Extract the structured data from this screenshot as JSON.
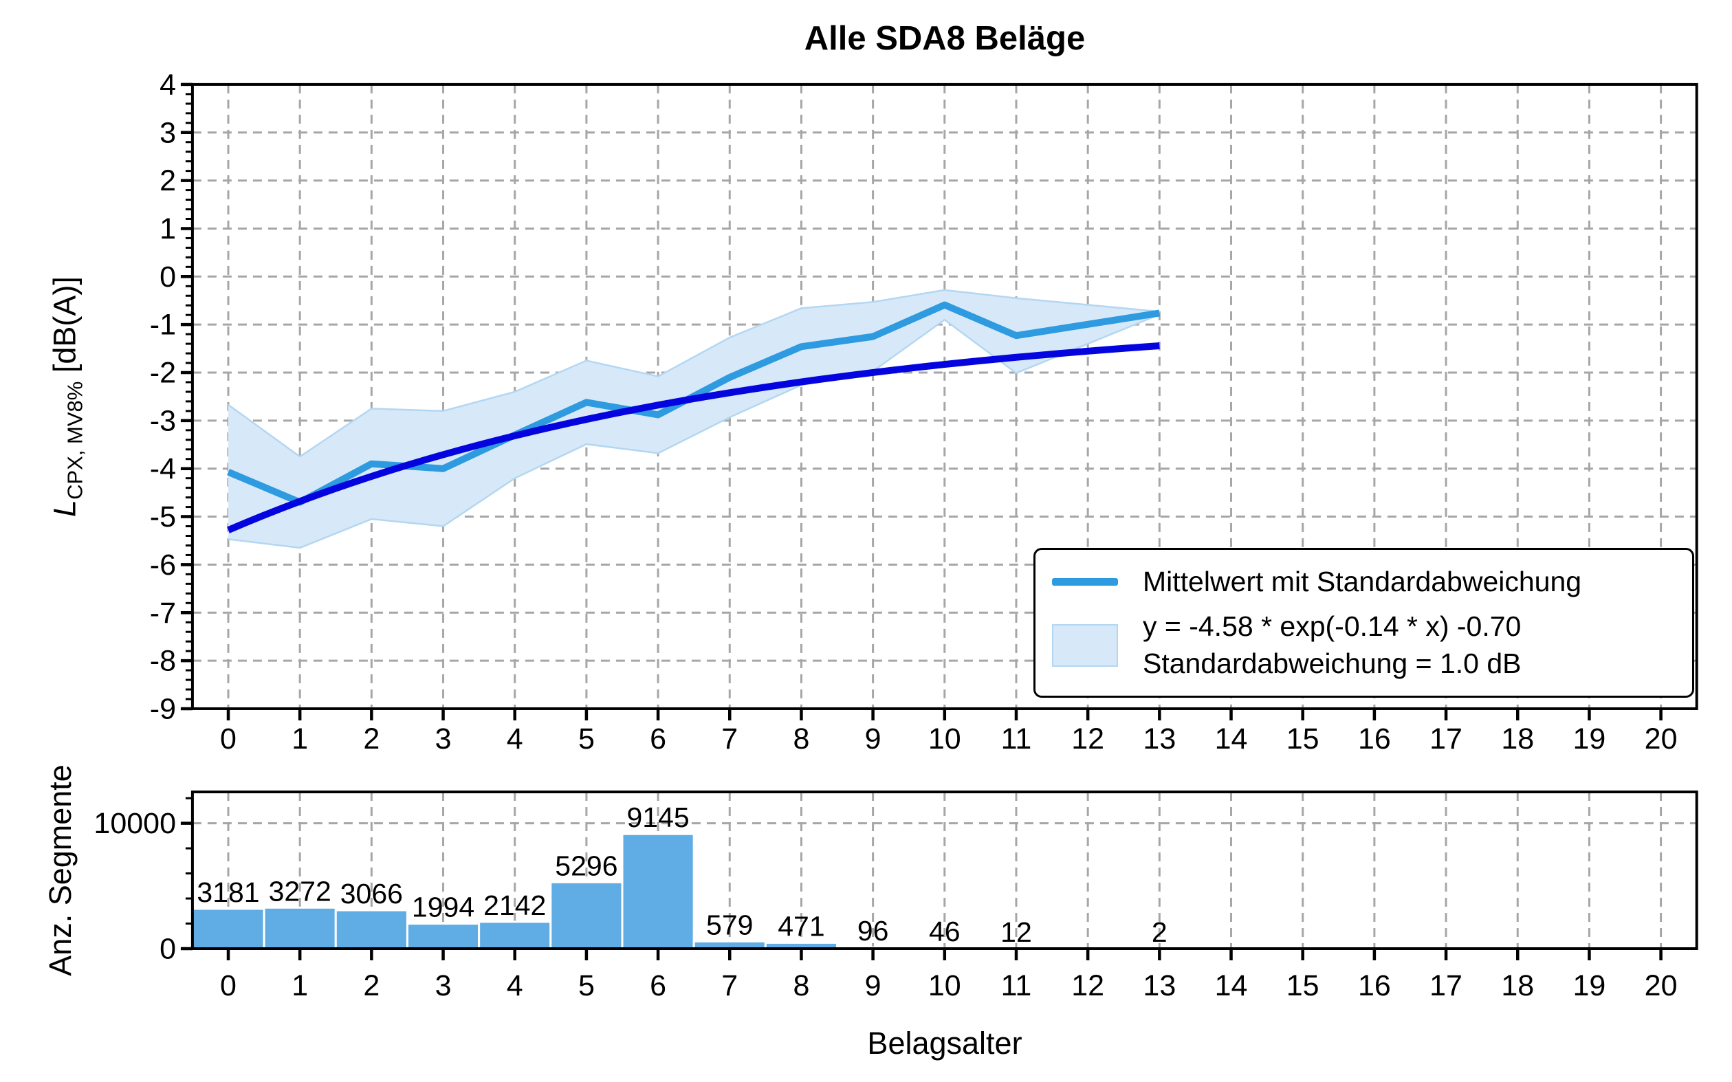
{
  "colors": {
    "mean_line": "#2e9adf",
    "fit_line": "#0404df",
    "band_fill": "#d7e9f8",
    "band_edge": "#b3d7f2",
    "bars": "#5fade4",
    "bar_edge": "#ffffff",
    "grid": "#a6a6a6",
    "axis": "#000000"
  },
  "top_chart": {
    "title": "Alle SDA8 Beläge",
    "ylabel": {
      "symbol": "L",
      "subscript": "CPX, MV8%",
      "unit": "[dB(A)]"
    },
    "ylim": [
      -9,
      4
    ],
    "xlim": [
      -0.5,
      20.5
    ],
    "x_tick_min": 0,
    "x_tick_max": 20,
    "x_tick_step": 1,
    "y_tick_min": -9,
    "y_tick_max": 4,
    "y_tick_step": 1,
    "y_minor_step": 0.2,
    "legend": {
      "mean_label": "Mittelwert mit Standardabweichung",
      "fit_label_line1": "y = -4.58 * exp(-0.14 * x) -0.70",
      "fit_label_line2": "Standardabweichung = 1.0 dB"
    }
  },
  "bottom_chart": {
    "ylabel": "Anz. Segmente",
    "xlabel": "Belagsalter",
    "ylim": [
      0,
      12500
    ],
    "y_tick_values": [
      0,
      10000
    ],
    "y_tick_labels": [
      "0",
      "10000"
    ],
    "y_minor_values": [
      2000,
      4000,
      6000,
      8000,
      12000
    ],
    "x_tick_min": 0,
    "x_tick_max": 20,
    "x_tick_step": 1
  },
  "chart_data": [
    {
      "type": "line",
      "name": "Mittelwert mit Standardabweichung",
      "x": [
        0,
        1,
        2,
        3,
        4,
        5,
        6,
        7,
        8,
        9,
        10,
        11,
        13
      ],
      "y": [
        -4.07,
        -4.7,
        -3.9,
        -4.0,
        -3.3,
        -2.62,
        -2.88,
        -2.1,
        -1.46,
        -1.25,
        -0.59,
        -1.23,
        -0.76
      ],
      "band_upper": [
        -2.67,
        -3.75,
        -2.75,
        -2.8,
        -2.4,
        -1.75,
        -2.08,
        -1.27,
        -0.66,
        -0.53,
        -0.28,
        -0.45,
        -0.73
      ],
      "band_lower": [
        -5.47,
        -5.65,
        -5.05,
        -5.2,
        -4.2,
        -3.49,
        -3.68,
        -2.93,
        -2.26,
        -1.97,
        -0.9,
        -2.01,
        -0.79
      ],
      "note": "no data at x=12; segment connects 11 to 13"
    },
    {
      "type": "line",
      "name": "Exponential-Fit",
      "formula": "y = -4.58 * exp(-0.14 * x) -0.70",
      "coeffs": {
        "a": -4.58,
        "k": -0.14,
        "c": -0.7
      },
      "x_range": [
        0,
        13
      ]
    },
    {
      "type": "bar",
      "name": "Anz. Segmente",
      "x": [
        0,
        1,
        2,
        3,
        4,
        5,
        6,
        7,
        8,
        9,
        10,
        11,
        13
      ],
      "values": [
        3181,
        3272,
        3066,
        1994,
        2142,
        5296,
        9145,
        579,
        471,
        96,
        46,
        12,
        2
      ],
      "xlabel": "Belagsalter"
    }
  ]
}
